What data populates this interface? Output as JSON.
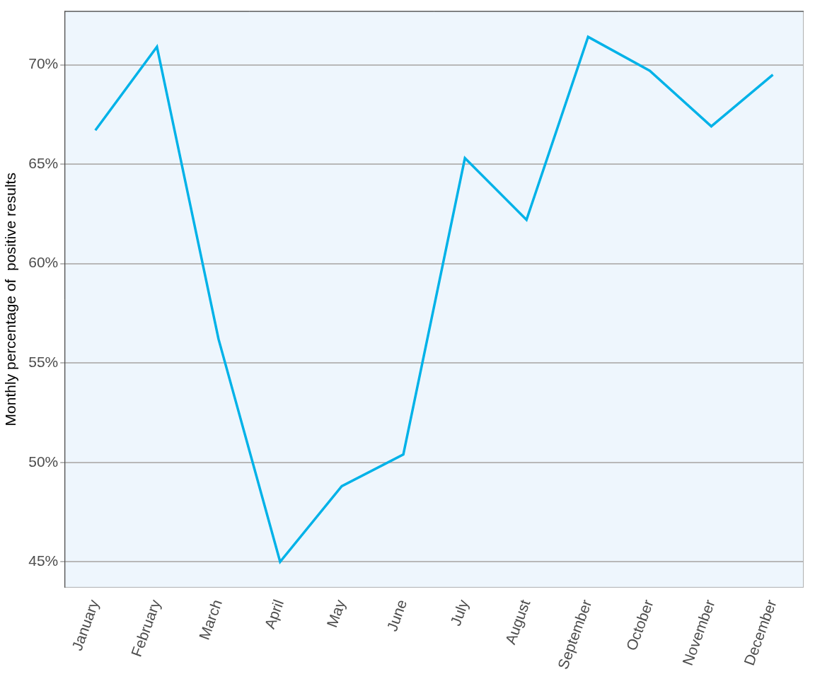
{
  "chart_data": {
    "type": "line",
    "ylabel": "Monthly percentage of  positive results",
    "categories": [
      "January",
      "February",
      "March",
      "April",
      "May",
      "June",
      "July",
      "August",
      "September",
      "October",
      "November",
      "December"
    ],
    "values": [
      66.7,
      70.9,
      56.2,
      45.0,
      48.8,
      50.4,
      65.3,
      62.2,
      71.4,
      69.7,
      66.9,
      69.5
    ],
    "color": "#00b2e8",
    "ylim": [
      43.7,
      72.7
    ],
    "yticks": [
      {
        "value": 45,
        "label": "45%"
      },
      {
        "value": 50,
        "label": "50%"
      },
      {
        "value": 55,
        "label": "55%"
      },
      {
        "value": 60,
        "label": "60%"
      },
      {
        "value": 65,
        "label": "65%"
      },
      {
        "value": 70,
        "label": "70%"
      }
    ],
    "grid": true
  }
}
